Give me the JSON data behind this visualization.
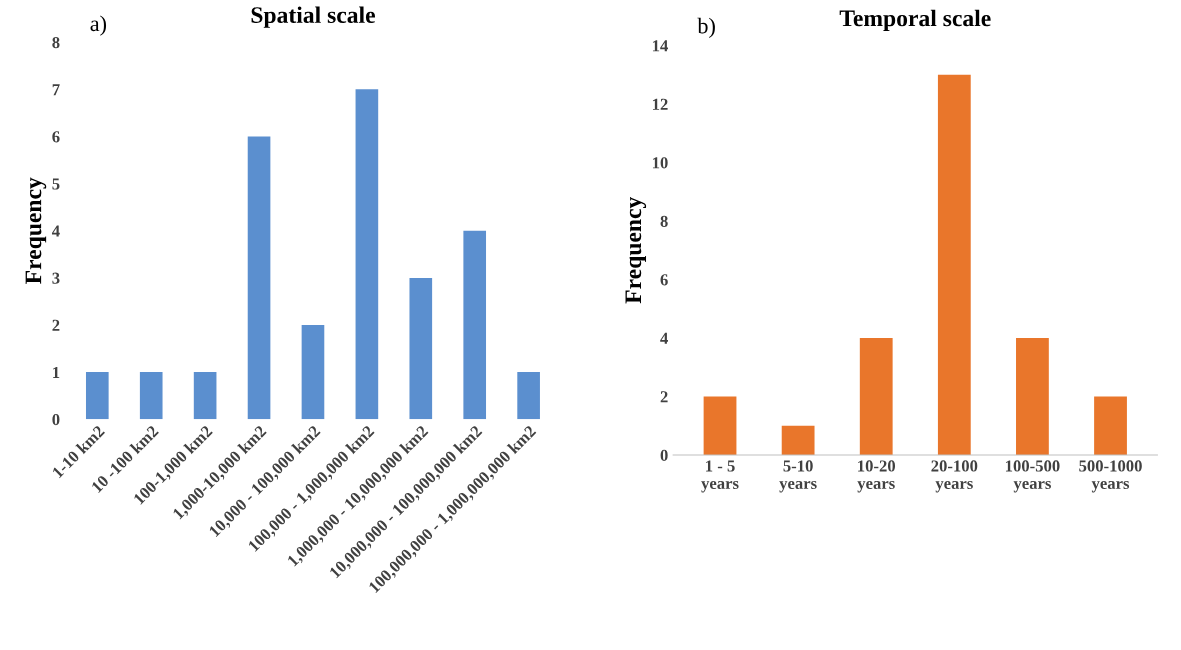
{
  "chart_data": [
    {
      "type": "bar",
      "title": "Spatial scale",
      "ylabel": "Frequency",
      "annotations": [
        "a)"
      ],
      "categories": [
        "1-10 km2",
        "10 -100 km2",
        "100-1,000 km2",
        "1,000-10,000 km2",
        "10,000 - 100,000 km2",
        "100,000 - 1,000,000 km2",
        "1,000,000 - 10,000,000 km2",
        "10,000,000 - 100,000,000 km2",
        "100,000,000 - 1,000,000,000 km2"
      ],
      "values": [
        1,
        1,
        1,
        6,
        2,
        7,
        3,
        4,
        1
      ],
      "color": "#5b8fcf",
      "ylim": [
        0,
        8
      ],
      "yticks": [
        0,
        1,
        2,
        3,
        4,
        5,
        6,
        7,
        8
      ],
      "grid": false,
      "legend": false
    },
    {
      "type": "bar",
      "title": "Temporal scale",
      "ylabel": "Frequency",
      "annotations": [
        "b)"
      ],
      "categories": [
        "1 - 5\nyears",
        "5-10\nyears",
        "10-20\nyears",
        "20-100\nyears",
        "100-500\nyears",
        "500-1000\nyears"
      ],
      "values": [
        2,
        1,
        4,
        13,
        4,
        2
      ],
      "color": "#e9762b",
      "ylim": [
        0,
        14
      ],
      "yticks": [
        0,
        2,
        4,
        6,
        8,
        10,
        12,
        14
      ],
      "grid": false,
      "legend": false
    }
  ]
}
